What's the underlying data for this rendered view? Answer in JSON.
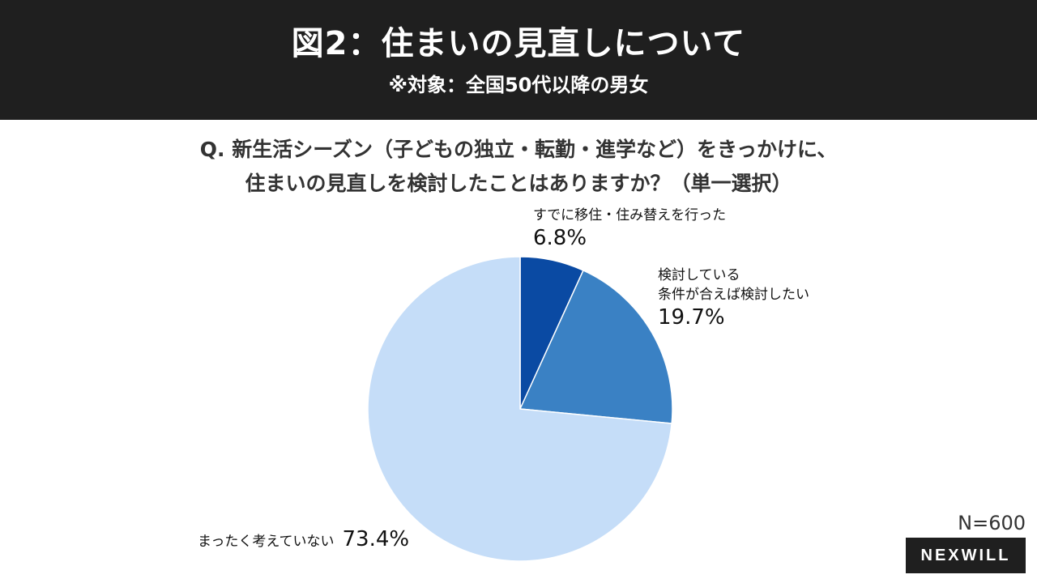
{
  "header": {
    "title": "図2：住まいの見直しについて",
    "subtitle": "※対象：全国50代以降の男女"
  },
  "question": {
    "line1": "Q. 新生活シーズン（子どもの独立・転勤・進学など）をきっかけに、",
    "line2": "住まいの見直しを検討したことはありますか？（単一選択）"
  },
  "chart_data": {
    "type": "pie",
    "start_angle": "12 o'clock",
    "direction": "clockwise",
    "slices": [
      {
        "label": "すでに移住・住み替えを行った",
        "label_lines": [
          "すでに移住・住み替えを行った"
        ],
        "value": 6.8,
        "display": "6.8%",
        "color": "#0a4aa3"
      },
      {
        "label": "検討している 条件が合えば検討したい",
        "label_lines": [
          "検討している",
          "条件が合えば検討したい"
        ],
        "value": 19.7,
        "display": "19.7%",
        "color": "#3a81c4"
      },
      {
        "label": "まったく考えていない",
        "label_lines": [
          "まったく考えていない"
        ],
        "value": 73.4,
        "display": "73.4%",
        "color": "#c5ddf8"
      }
    ]
  },
  "sample": {
    "n": "N=600"
  },
  "logo": {
    "text": "NEXWILL"
  }
}
